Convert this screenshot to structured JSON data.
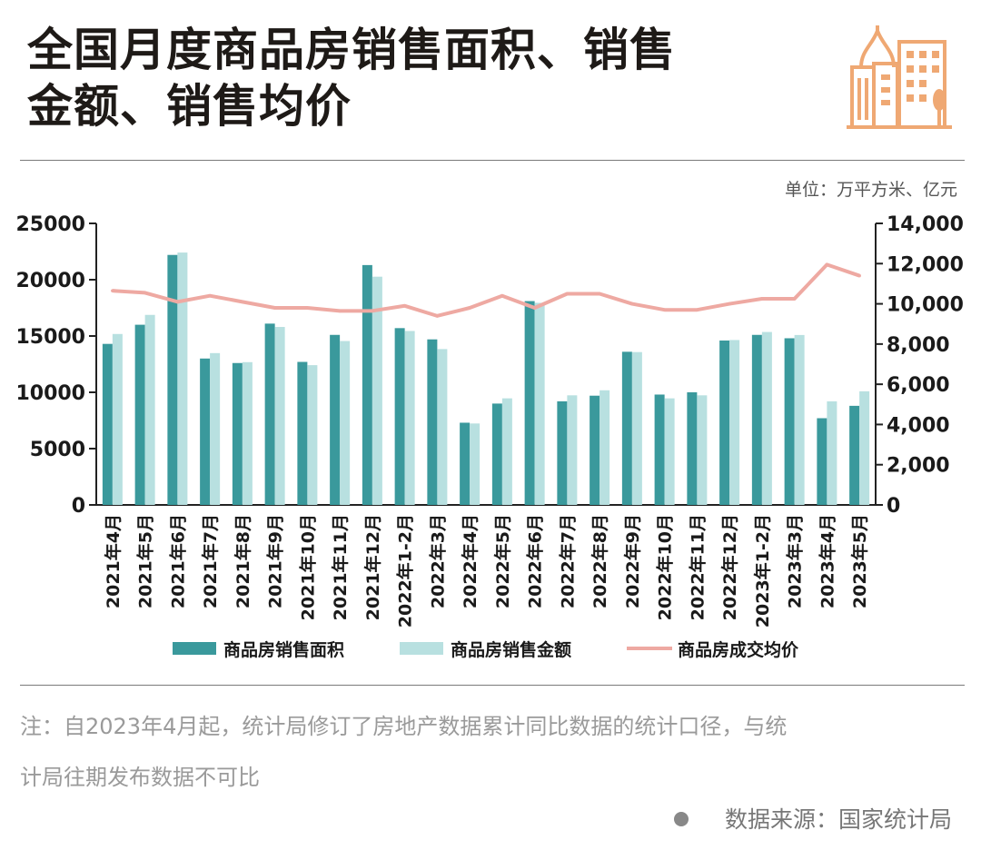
{
  "title_lines": [
    "全国月度商品房销售面积、销售",
    "金额、销售均价"
  ],
  "unit": "单位：万平方米、亿元",
  "note_lines": [
    "注：自2023年4月起，统计局修订了房地产数据累计同比数据的统计口径，与统",
    "计局往期发布数据不可比"
  ],
  "source": "数据来源：国家统计局",
  "colors": {
    "area": "#3a999c",
    "amount": "#b8e0e0",
    "price": "#eea9a2",
    "logo": "#efa873"
  },
  "chart_data": {
    "type": "bar",
    "categories": [
      "2021年4月",
      "2021年5月",
      "2021年6月",
      "2021年7月",
      "2021年8月",
      "2021年9月",
      "2021年10月",
      "2021年11月",
      "2021年12月",
      "2022年1-2月",
      "2022年3月",
      "2022年4月",
      "2022年5月",
      "2022年6月",
      "2022年7月",
      "2022年8月",
      "2022年9月",
      "2022年10月",
      "2022年11月",
      "2022年12月",
      "2023年1-2月",
      "2023年3月",
      "2023年4月",
      "2023年5月"
    ],
    "series": [
      {
        "name": "商品房销售面积",
        "type": "bar",
        "axis": "left",
        "values": [
          14300,
          16000,
          22200,
          13000,
          12600,
          16100,
          12700,
          15100,
          21300,
          15700,
          14700,
          7300,
          9000,
          18100,
          9200,
          9700,
          13600,
          9800,
          10000,
          14600,
          15100,
          14800,
          7700,
          8800
        ]
      },
      {
        "name": "商品房销售金额",
        "type": "bar",
        "axis": "right",
        "values": [
          8500,
          9450,
          12550,
          7550,
          7100,
          8850,
          6950,
          8150,
          11350,
          8650,
          7750,
          4050,
          5300,
          10050,
          5450,
          5700,
          7600,
          5300,
          5450,
          8200,
          8600,
          8450,
          5150,
          5650
        ]
      },
      {
        "name": "商品房成交均价",
        "type": "line",
        "axis": "right",
        "values": [
          10650,
          10550,
          10100,
          10400,
          10100,
          9800,
          9800,
          9650,
          9650,
          9900,
          9400,
          9800,
          10400,
          9800,
          10500,
          10500,
          10000,
          9700,
          9700,
          10000,
          10250,
          10250,
          11950,
          11400
        ]
      }
    ],
    "y_left": {
      "range": [
        0,
        25000
      ],
      "ticks": [
        "0",
        "5000",
        "10000",
        "15000",
        "20000",
        "25000"
      ]
    },
    "y_right": {
      "range": [
        0,
        14000
      ],
      "ticks": [
        "0",
        "2,000",
        "4,000",
        "6,000",
        "8,000",
        "10,000",
        "12,000",
        "14,000"
      ]
    },
    "legend": [
      "商品房销售面积",
      "商品房销售金额",
      "商品房成交均价"
    ],
    "legend_position": "bottom",
    "grid": false
  }
}
